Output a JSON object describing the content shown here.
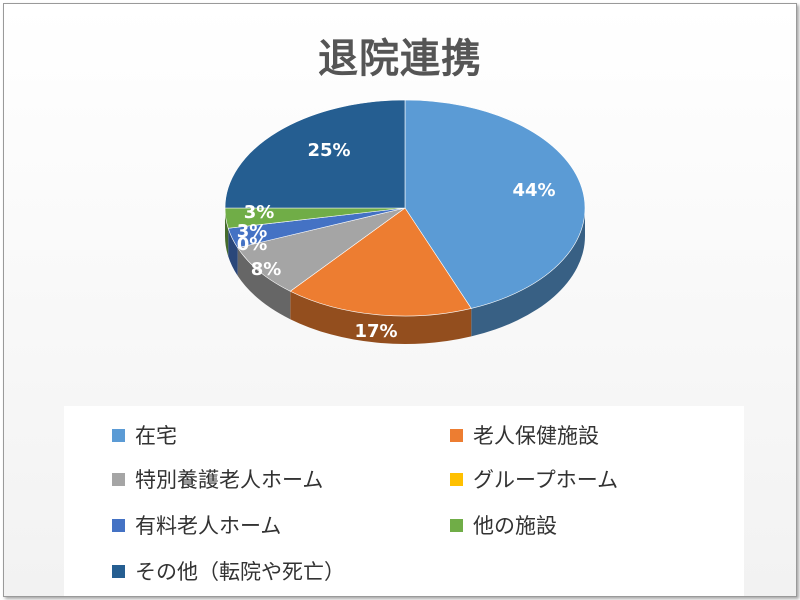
{
  "chart_data": {
    "type": "pie",
    "title": "退院連携",
    "categories": [
      "在宅",
      "老人保健施設",
      "特別養護老人ホーム",
      "グループホーム",
      "有料老人ホーム",
      "他の施設",
      "その他（転院や死亡）"
    ],
    "values": [
      44,
      17,
      8,
      0,
      3,
      3,
      25
    ],
    "labels": [
      "44%",
      "17%",
      "8%",
      "0%",
      "3%",
      "3%",
      "25%"
    ],
    "colors": [
      "#5b9bd5",
      "#ed7d31",
      "#a5a5a5",
      "#ffc000",
      "#4472c4",
      "#70ad47",
      "#255e91"
    ],
    "legend_position": "bottom",
    "style": "3d-pie"
  }
}
